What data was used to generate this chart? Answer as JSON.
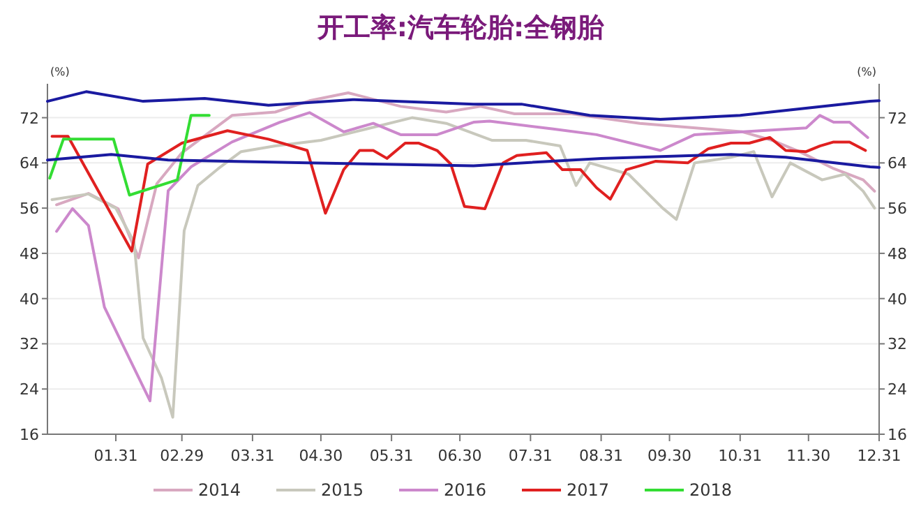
{
  "chart_data": {
    "type": "line",
    "title": "开工率:汽车轮胎:全钢胎",
    "ylabel": "(%)",
    "y2label": "(%)",
    "xlim": [
      "--01-01",
      "--12-31"
    ],
    "xticks": [
      {
        "value": "--01-31",
        "label": "01.31"
      },
      {
        "value": "--02-29",
        "label": "02.29"
      },
      {
        "value": "--03-31",
        "label": "03.31"
      },
      {
        "value": "--04-30",
        "label": "04.30"
      },
      {
        "value": "--05-31",
        "label": "05.31"
      },
      {
        "value": "--06-30",
        "label": "06.30"
      },
      {
        "value": "--07-31",
        "label": "07.31"
      },
      {
        "value": "--08-31",
        "label": "08.31"
      },
      {
        "value": "--09-30",
        "label": "09.30"
      },
      {
        "value": "--10-31",
        "label": "10.31"
      },
      {
        "value": "--11-30",
        "label": "11.30"
      },
      {
        "value": "--12-31",
        "label": "12.31"
      }
    ],
    "ylim": [
      16,
      78
    ],
    "yticks": [
      16,
      24,
      32,
      40,
      48,
      56,
      64,
      72
    ],
    "y2lim": [
      16,
      78
    ],
    "y2ticks": [
      16,
      24,
      32,
      40,
      48,
      56,
      64,
      72
    ],
    "grid": "y",
    "legend": "bottom",
    "line_style": "solid",
    "series": [
      {
        "name": "2014",
        "color": "#d8a8c0",
        "x": [
          "--01-05",
          "--01-19",
          "--02-01",
          "--02-10",
          "--02-18",
          "--02-29",
          "--03-22",
          "--04-10",
          "--04-25",
          "--05-12",
          "--06-04",
          "--06-24",
          "--07-09",
          "--07-24",
          "--08-18",
          "--09-17",
          "--10-17",
          "--11-01",
          "--11-14",
          "--11-26",
          "--12-11",
          "--12-24",
          "--12-29"
        ],
        "values": [
          56.6,
          58.6,
          55.9,
          47.2,
          60.3,
          65.8,
          72.4,
          73,
          75,
          76.4,
          74,
          73,
          74,
          72.7,
          72.7,
          71,
          70,
          69.5,
          68,
          66,
          63,
          61,
          59
        ]
      },
      {
        "name": "2015",
        "color": "#c8c8bc",
        "x": [
          "--01-03",
          "--01-19",
          "--01-31",
          "--02-08",
          "--02-12",
          "--02-20",
          "--02-25",
          "--03-01",
          "--03-07",
          "--03-16",
          "--03-26",
          "--04-10",
          "--04-30",
          "--05-20",
          "--06-09",
          "--06-24",
          "--07-14",
          "--07-29",
          "--08-13",
          "--08-20",
          "--08-26",
          "--09-12",
          "--09-27",
          "--10-03",
          "--10-11",
          "--10-27",
          "--11-06",
          "--11-14",
          "--11-22",
          "--12-06",
          "--12-16",
          "--12-24",
          "--12-29"
        ],
        "values": [
          57.5,
          58.5,
          56,
          50,
          33,
          26,
          19,
          52,
          60,
          63,
          66,
          67,
          68,
          70,
          72,
          71,
          68,
          68,
          67,
          60,
          64,
          62,
          56,
          54,
          64,
          65,
          66,
          58,
          64,
          61,
          62,
          59,
          56
        ]
      },
      {
        "name": "2016",
        "color": "#cc88cc",
        "x": [
          "--01-05",
          "--01-12",
          "--01-19",
          "--01-26",
          "--02-15",
          "--02-23",
          "--03-04",
          "--03-22",
          "--04-12",
          "--04-25",
          "--05-10",
          "--05-23",
          "--06-04",
          "--06-20",
          "--07-06",
          "--07-13",
          "--08-10",
          "--08-29",
          "--09-26",
          "--10-11",
          "--11-29",
          "--12-05",
          "--12-11",
          "--12-18",
          "--12-26"
        ],
        "values": [
          51.9,
          55.9,
          52.9,
          38.5,
          21.9,
          59.1,
          63.3,
          67.7,
          71.2,
          72.9,
          69.5,
          71.0,
          69.0,
          69.0,
          71.2,
          71.4,
          70.0,
          69.0,
          66.2,
          69.0,
          70.2,
          72.4,
          71.2,
          71.2,
          68.5
        ]
      },
      {
        "name": "2017",
        "color": "#e02020",
        "x": [
          "--01-03",
          "--01-10",
          "--02-07",
          "--02-14",
          "--02-29",
          "--03-20",
          "--04-07",
          "--04-24",
          "--05-02",
          "--05-10",
          "--05-17",
          "--05-23",
          "--05-29",
          "--06-06",
          "--06-12",
          "--06-20",
          "--06-26",
          "--07-02",
          "--07-11",
          "--07-19",
          "--07-25",
          "--08-07",
          "--08-14",
          "--08-22",
          "--08-29",
          "--09-04",
          "--09-11",
          "--09-24",
          "--10-08",
          "--10-17",
          "--10-27",
          "--11-04",
          "--11-13",
          "--11-20",
          "--11-29",
          "--12-05",
          "--12-11",
          "--12-18",
          "--12-25"
        ],
        "values": [
          68.7,
          68.7,
          48.4,
          63.8,
          67.5,
          69.7,
          68.2,
          66.2,
          55.1,
          62.8,
          66.2,
          66.2,
          64.8,
          67.5,
          67.5,
          66.2,
          63.8,
          56.3,
          55.9,
          64.0,
          65.3,
          65.8,
          62.8,
          62.8,
          59.6,
          57.6,
          62.8,
          64.3,
          64.0,
          66.5,
          67.5,
          67.5,
          68.5,
          66.2,
          66.0,
          67.0,
          67.7,
          67.7,
          66.2
        ]
      },
      {
        "name": "2018",
        "color": "#33dd33",
        "x": [
          "--01-02",
          "--01-08",
          "--01-30",
          "--02-06",
          "--02-27",
          "--03-04",
          "--03-12"
        ],
        "values": [
          61.3,
          68.2,
          68.2,
          58.3,
          61.0,
          72.4,
          72.4
        ]
      },
      {
        "color": "#1a1aa0",
        "x": [
          "--01-01",
          "--01-18",
          "--02-12",
          "--03-10",
          "--04-07",
          "--05-14",
          "--07-06",
          "--07-27",
          "--08-26",
          "--09-26",
          "--10-31",
          "--12-27",
          "--12-31"
        ],
        "values": [
          74.9,
          76.6,
          74.9,
          75.4,
          74.2,
          75.2,
          74.4,
          74.4,
          72.4,
          71.7,
          72.4,
          74.9,
          75.0
        ]
      },
      {
        "color": "#1a1aa0",
        "x": [
          "--01-01",
          "--01-29",
          "--02-23",
          "--04-24",
          "--07-06",
          "--08-31",
          "--10-27",
          "--11-20",
          "--12-27",
          "--12-31"
        ],
        "values": [
          64.5,
          65.5,
          64.5,
          64.0,
          63.5,
          64.8,
          65.5,
          65.0,
          63.3,
          63.2
        ]
      }
    ]
  }
}
